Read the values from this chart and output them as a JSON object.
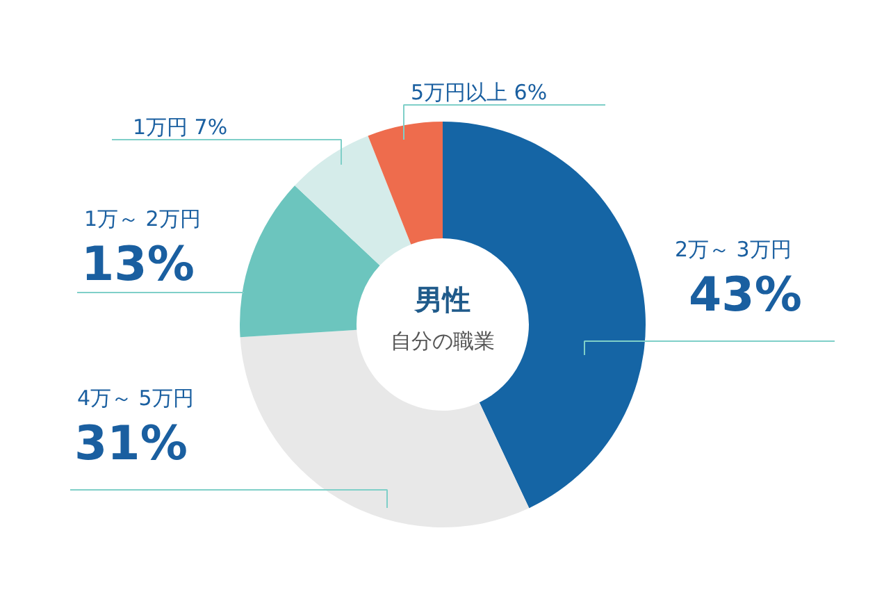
{
  "chart_data": {
    "type": "donut",
    "title": "男性",
    "subtitle": "自分の職業",
    "categories": [
      "2万～ 3万円",
      "4万～ 5万円",
      "1万～ 2万円",
      "1万円",
      "5万円以上"
    ],
    "values": [
      43,
      31,
      13,
      7,
      6
    ],
    "value_labels": [
      "43%",
      "31%",
      "13%",
      "7%",
      "6%"
    ],
    "colors": [
      "#1565a5",
      "#e8e8e8",
      "#6cc5be",
      "#d5ecea",
      "#ee6c4d"
    ]
  }
}
